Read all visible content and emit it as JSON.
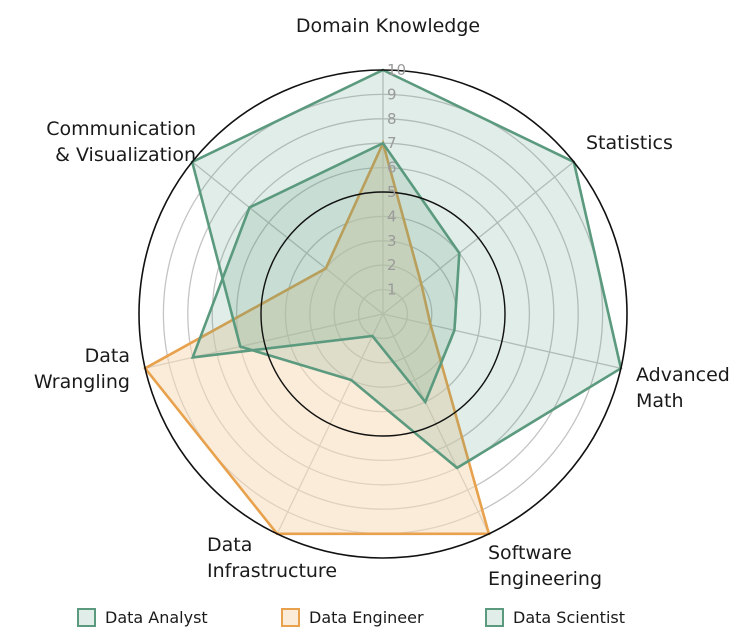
{
  "chart_data": {
    "type": "radar",
    "axes": [
      "Domain Knowledge",
      "Statistics",
      "Advanced Math",
      "Software Engineering",
      "Data Infrastructure",
      "Data Wrangling",
      "Communication & Visualization"
    ],
    "axis_label_lines": [
      [
        "Domain Knowledge"
      ],
      [
        "Statistics"
      ],
      [
        "Advanced",
        "Math"
      ],
      [
        "Software",
        "Engineering"
      ],
      [
        "Data",
        "Infrastructure"
      ],
      [
        "Data",
        "Wrangling"
      ],
      [
        "Communication",
        "& Visualization"
      ]
    ],
    "rlim": [
      0,
      10
    ],
    "ticks": [
      1,
      2,
      3,
      4,
      5,
      6,
      7,
      8,
      9,
      10
    ],
    "tick_labels": [
      "1",
      "2",
      "3",
      "4",
      "5",
      "6",
      "7",
      "8",
      "9",
      "10"
    ],
    "grid": true,
    "legend_position": "bottom",
    "series": [
      {
        "name": "Data Analyst",
        "color": "#5b9a7e",
        "values": [
          10,
          10,
          10,
          7,
          3,
          6,
          10
        ]
      },
      {
        "name": "Data Engineer",
        "color": "#e8a14c",
        "values": [
          7,
          2,
          2,
          10,
          10,
          10,
          3
        ]
      },
      {
        "name": "Data Scientist",
        "color": "#5b9a7e",
        "values": [
          7,
          4,
          3,
          4,
          1,
          8,
          7
        ]
      }
    ]
  }
}
